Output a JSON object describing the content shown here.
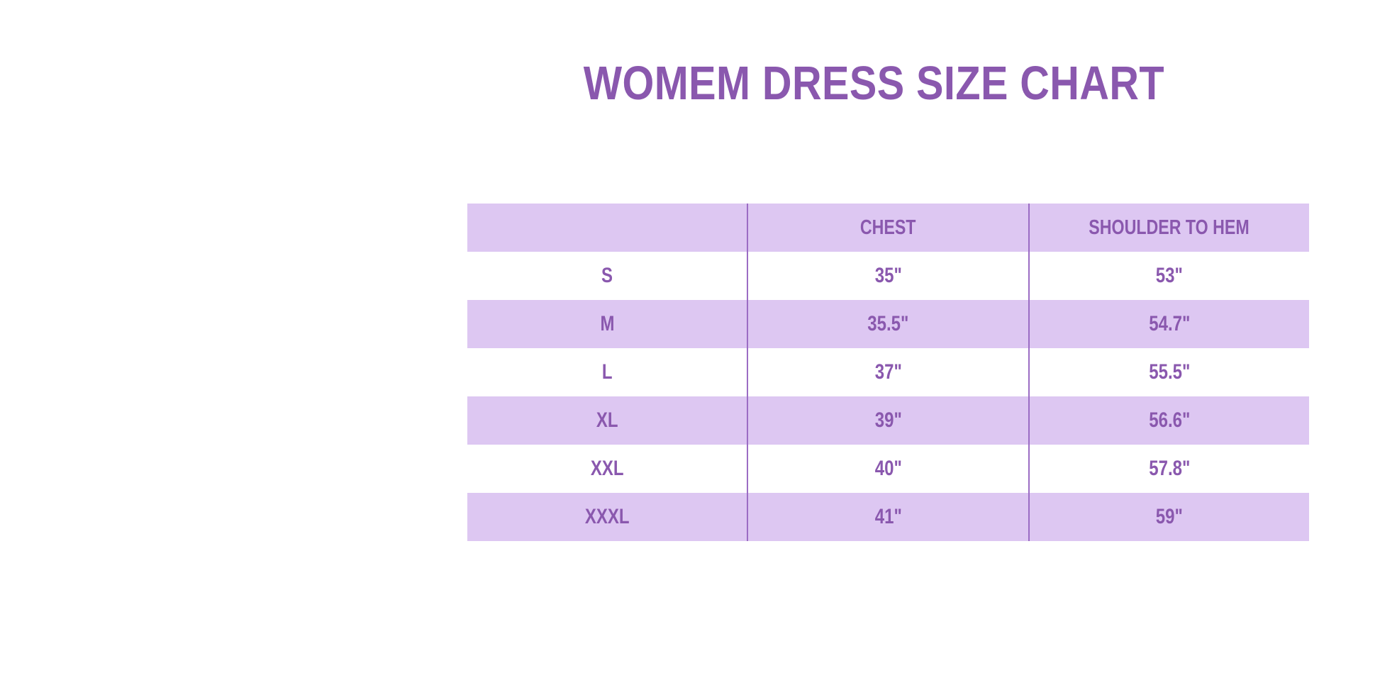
{
  "title": {
    "text": "WOMEM DRESS SIZE CHART",
    "color": "#8a58ae"
  },
  "table": {
    "band_color": "#ddc7f2",
    "separator_color": "#9b6cc4",
    "text_color": "#8a58ae",
    "columns": [
      "",
      "CHEST",
      "SHOULDER TO HEM"
    ],
    "rows": [
      {
        "size": "S",
        "chest": "35\"",
        "shoulder_to_hem": "53\""
      },
      {
        "size": "M",
        "chest": "35.5\"",
        "shoulder_to_hem": "54.7\""
      },
      {
        "size": "L",
        "chest": "37\"",
        "shoulder_to_hem": "55.5\""
      },
      {
        "size": "XL",
        "chest": "39\"",
        "shoulder_to_hem": "56.6\""
      },
      {
        "size": "XXL",
        "chest": "40\"",
        "shoulder_to_hem": "57.8\""
      },
      {
        "size": "XXXL",
        "chest": "41\"",
        "shoulder_to_hem": "59\""
      }
    ]
  },
  "chart_data": {
    "type": "table",
    "title": "WOMEM DRESS SIZE CHART",
    "columns": [
      "",
      "CHEST",
      "SHOULDER TO HEM"
    ],
    "rows": [
      [
        "S",
        "35\"",
        "53\""
      ],
      [
        "M",
        "35.5\"",
        "54.7\""
      ],
      [
        "L",
        "37\"",
        "55.5\""
      ],
      [
        "XL",
        "39\"",
        "56.6\""
      ],
      [
        "XXL",
        "40\"",
        "57.8\""
      ],
      [
        "XXXL",
        "41\"",
        "59\""
      ]
    ],
    "layout": {
      "columns_equal_width": true,
      "header_band": true,
      "alternating_row_bands": [
        "header",
        "M",
        "XL",
        "XXXL"
      ]
    }
  }
}
